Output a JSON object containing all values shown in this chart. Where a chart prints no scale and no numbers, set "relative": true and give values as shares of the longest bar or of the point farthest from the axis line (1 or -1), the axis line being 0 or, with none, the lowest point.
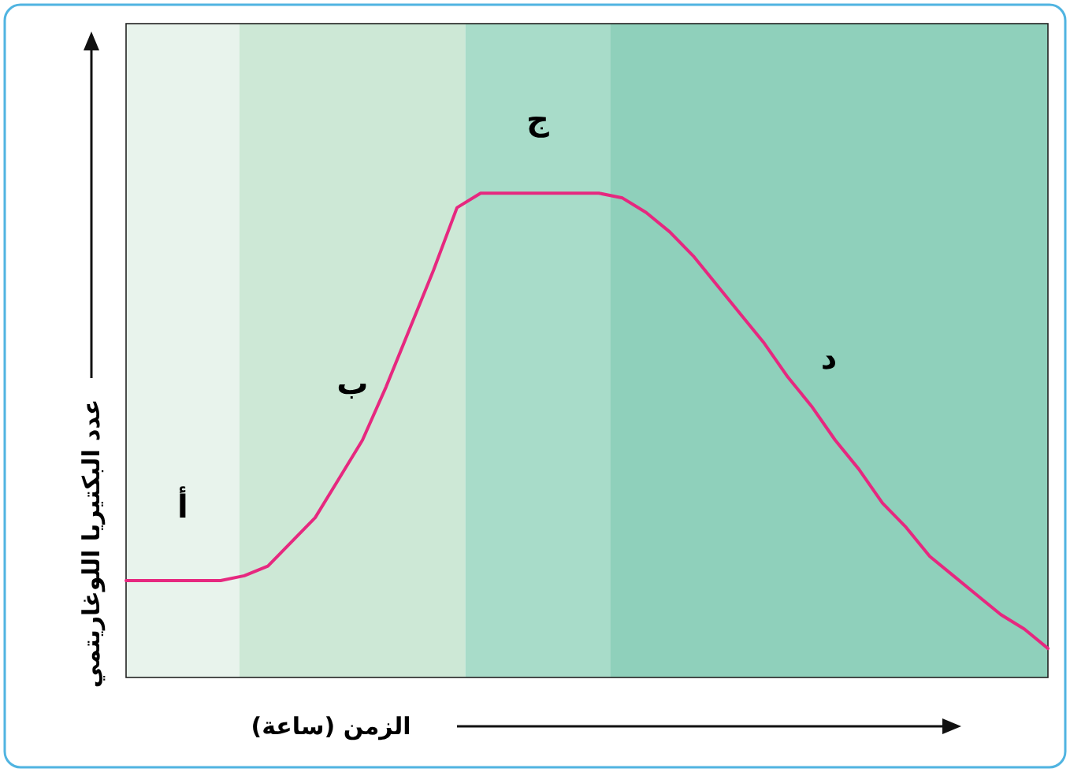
{
  "chart_data": {
    "type": "line",
    "relative": true,
    "xlabel": "الزمن (ساعة)",
    "ylabel": "عدد البكتيريا اللوغاريتمي",
    "categories": [
      null,
      null,
      null,
      null,
      null,
      null,
      null,
      null,
      null,
      null,
      null,
      null,
      null,
      null,
      null,
      null,
      null,
      null,
      null,
      null,
      null,
      null,
      null,
      null,
      null,
      null,
      null,
      null,
      null,
      null,
      null,
      null,
      null,
      null,
      null,
      null,
      null,
      null,
      null,
      null
    ],
    "series": [
      {
        "color": "#e6287f",
        "values": [
          0.2,
          0.2,
          0.2,
          0.2,
          0.2,
          0.21,
          0.23,
          0.28,
          0.33,
          0.41,
          0.49,
          0.6,
          0.72,
          0.84,
          0.97,
          1,
          1,
          1,
          1,
          1,
          1,
          0.99,
          0.96,
          0.92,
          0.87,
          0.81,
          0.75,
          0.69,
          0.62,
          0.56,
          0.49,
          0.43,
          0.36,
          0.31,
          0.25,
          0.21,
          0.17,
          0.13,
          0.1,
          0.06
        ]
      }
    ],
    "annotations": [
      "أ",
      "ب",
      "ج",
      "د"
    ],
    "marker": "none",
    "line_style": "solid"
  }
}
